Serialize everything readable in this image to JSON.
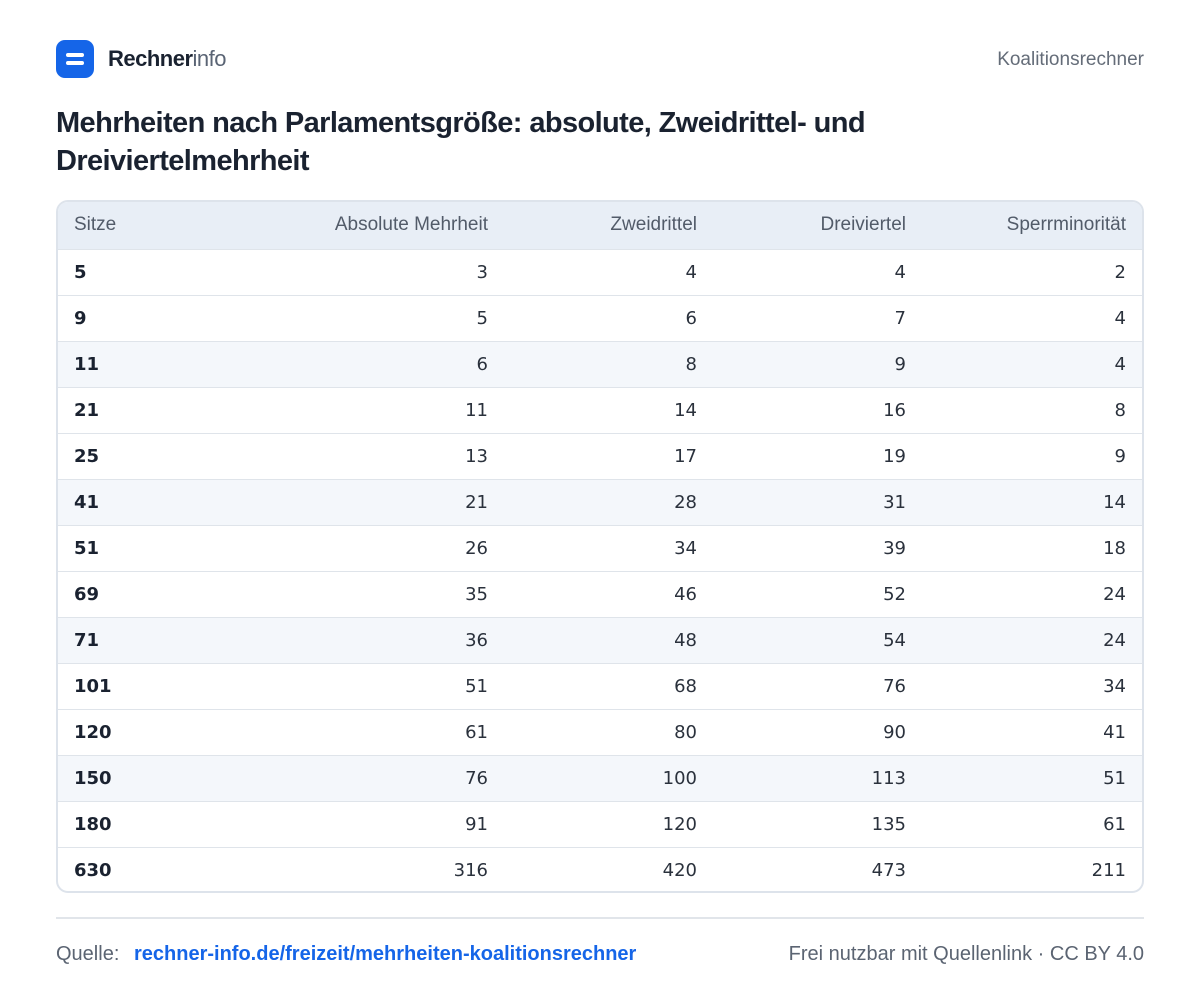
{
  "header": {
    "brand_strong": "Rechner",
    "brand_light": "info",
    "right_link": "Koalitionsrechner"
  },
  "title": "Mehrheiten nach Parlamentsgröße: absolute, Zweidrittel- und Dreiviertelmehrheit",
  "table": {
    "columns": [
      "Sitze",
      "Absolute Mehrheit",
      "Zweidrittel",
      "Dreiviertel",
      "Sperrminorität"
    ],
    "rows": [
      [
        "5",
        "3",
        "4",
        "4",
        "2"
      ],
      [
        "9",
        "5",
        "6",
        "7",
        "4"
      ],
      [
        "11",
        "6",
        "8",
        "9",
        "4"
      ],
      [
        "21",
        "11",
        "14",
        "16",
        "8"
      ],
      [
        "25",
        "13",
        "17",
        "19",
        "9"
      ],
      [
        "41",
        "21",
        "28",
        "31",
        "14"
      ],
      [
        "51",
        "26",
        "34",
        "39",
        "18"
      ],
      [
        "69",
        "35",
        "46",
        "52",
        "24"
      ],
      [
        "71",
        "36",
        "48",
        "54",
        "24"
      ],
      [
        "101",
        "51",
        "68",
        "76",
        "34"
      ],
      [
        "120",
        "61",
        "80",
        "90",
        "41"
      ],
      [
        "150",
        "76",
        "100",
        "113",
        "51"
      ],
      [
        "180",
        "91",
        "120",
        "135",
        "61"
      ],
      [
        "630",
        "316",
        "420",
        "473",
        "211"
      ]
    ]
  },
  "footer": {
    "source_label": "Quelle:",
    "source_link": "rechner-info.de/freizeit/mehrheiten-koalitionsrechner",
    "license": "Frei nutzbar mit Quellenlink · CC BY 4.0"
  },
  "colors": {
    "accent": "#1565e8",
    "header_row": "#e8eef6",
    "alt_row": "#f4f7fb"
  }
}
